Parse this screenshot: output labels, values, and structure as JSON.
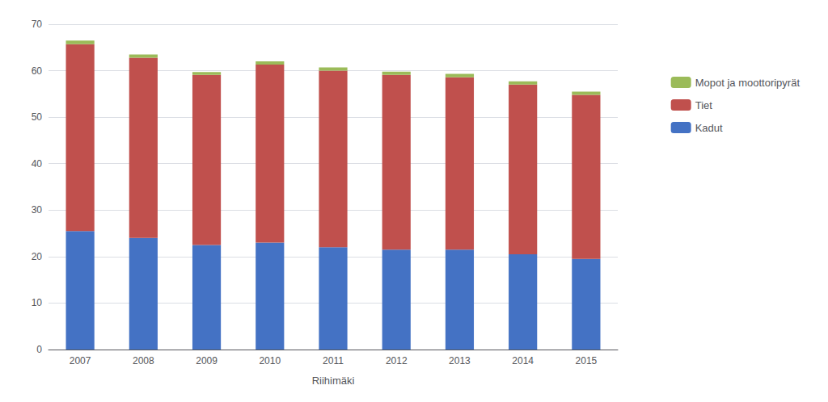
{
  "chart_data": {
    "type": "bar",
    "stacked": true,
    "categories": [
      "2007",
      "2008",
      "2009",
      "2010",
      "2011",
      "2012",
      "2013",
      "2014",
      "2015"
    ],
    "series": [
      {
        "name": "Kadut",
        "color": "#4472C4",
        "values": [
          25.5,
          24.0,
          22.5,
          23.0,
          22.0,
          21.5,
          21.5,
          20.5,
          19.5
        ]
      },
      {
        "name": "Tiet",
        "color": "#C0504D",
        "values": [
          40.2,
          38.8,
          36.6,
          38.3,
          38.0,
          37.6,
          37.1,
          36.5,
          35.3
        ]
      },
      {
        "name": "Mopot ja moottoripyrät",
        "color": "#9BBB59",
        "values": [
          0.8,
          0.7,
          0.6,
          0.7,
          0.7,
          0.7,
          0.7,
          0.7,
          0.7
        ]
      }
    ],
    "xlabel": "Riihimäki",
    "ylim": [
      0,
      70
    ],
    "yticks": [
      0,
      10,
      20,
      30,
      40,
      50,
      60,
      70
    ],
    "grid": true,
    "legend": "right"
  }
}
